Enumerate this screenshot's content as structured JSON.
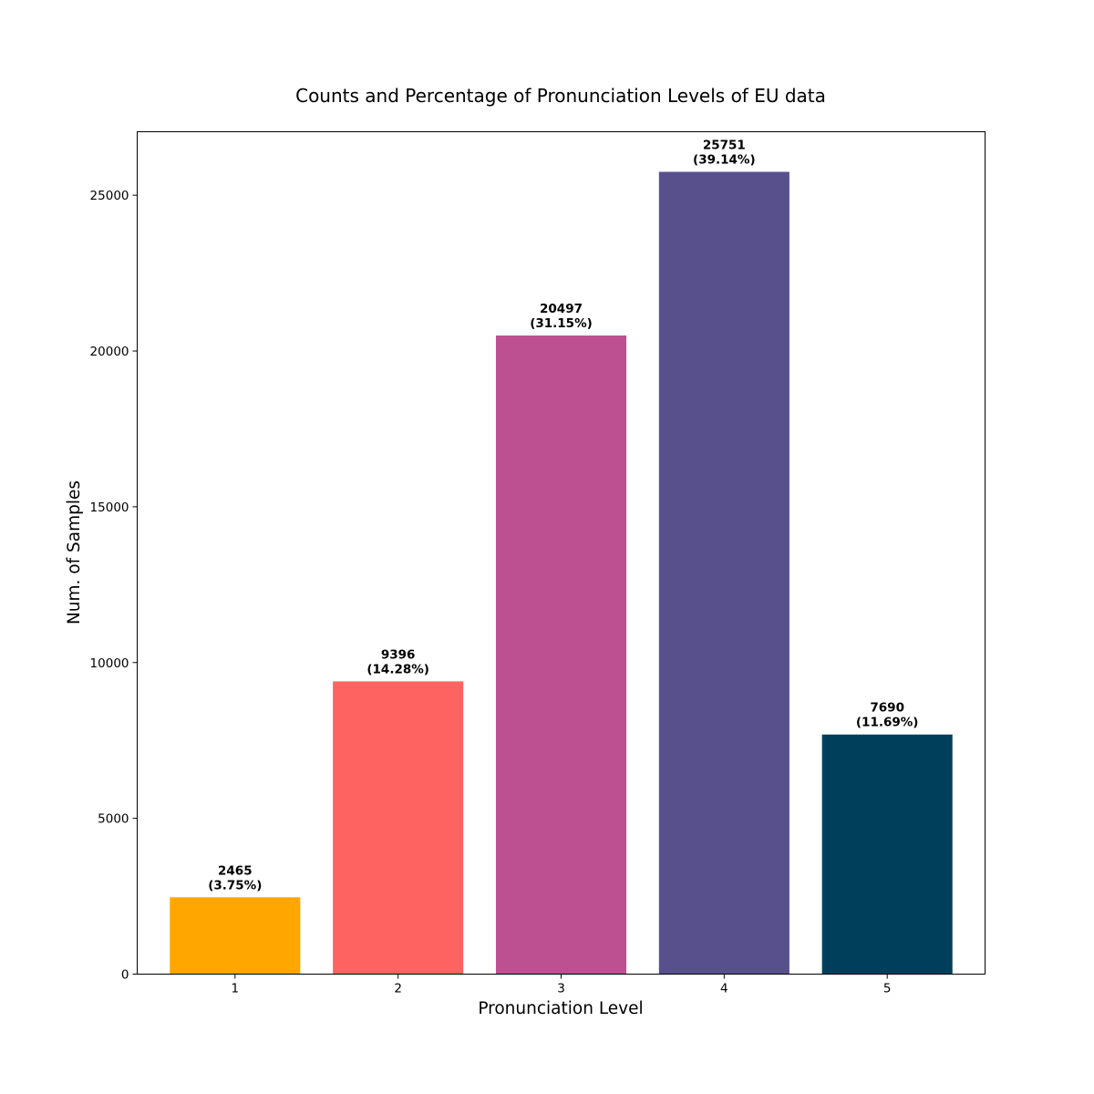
{
  "chart_data": {
    "type": "bar",
    "title": "Counts and Percentage of Pronunciation Levels of EU data",
    "xlabel": "Pronunciation Level",
    "ylabel": "Num. of Samples",
    "categories": [
      "1",
      "2",
      "3",
      "4",
      "5"
    ],
    "values": [
      2465,
      9396,
      20497,
      25751,
      7690
    ],
    "value_labels": [
      "2465",
      "9396",
      "20497",
      "25751",
      "7690"
    ],
    "percent_labels": [
      "(3.75%)",
      "(14.28%)",
      "(31.15%)",
      "(39.14%)",
      "(11.69%)"
    ],
    "colors": [
      "#ffa600",
      "#ff6361",
      "#bc5090",
      "#58508d",
      "#003f5c"
    ],
    "ylim": [
      0,
      27038
    ],
    "yticks": [
      0,
      5000,
      10000,
      15000,
      20000,
      25000
    ],
    "ytick_labels": [
      "0",
      "5000",
      "10000",
      "15000",
      "20000",
      "25000"
    ],
    "grid": false,
    "legend": false
  }
}
